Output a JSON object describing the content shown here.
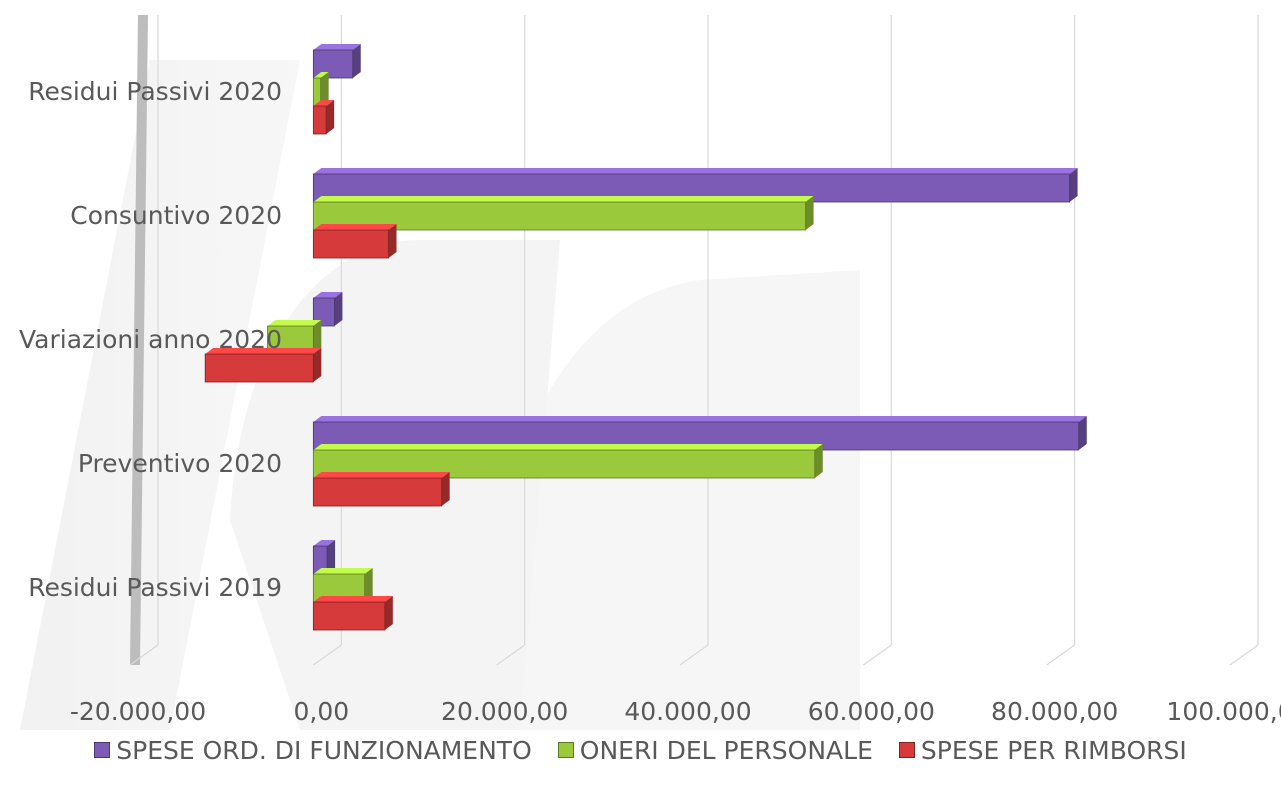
{
  "chart_data": {
    "type": "bar",
    "orientation": "horizontal",
    "style": "3d-clustered",
    "categories": [
      "Residui Passivi 2019",
      "Preventivo 2020",
      "Variazioni anno 2020",
      "Consuntivo 2020",
      "Residui Passivi 2020"
    ],
    "series": [
      {
        "name": "SPESE ORD. DI FUNZIONAMENTO",
        "color": "#7b5bb5",
        "values": [
          1500,
          83500,
          2300,
          82500,
          4300
        ]
      },
      {
        "name": "ONERI DEL PERSONALE",
        "color": "#9bc93c",
        "values": [
          5600,
          54700,
          -5000,
          53700,
          800
        ]
      },
      {
        "name": "SPESE PER RIMBORSI",
        "color": "#d63a3a",
        "values": [
          7800,
          14000,
          -11800,
          8200,
          1400
        ]
      }
    ],
    "x_ticks": [
      "-20.000,00",
      "0,00",
      "20.000,00",
      "40.000,00",
      "60.000,00",
      "80.000,00",
      "100.000,00"
    ],
    "xlim": [
      -20000,
      100000
    ],
    "grid": true,
    "legend_position": "bottom"
  }
}
